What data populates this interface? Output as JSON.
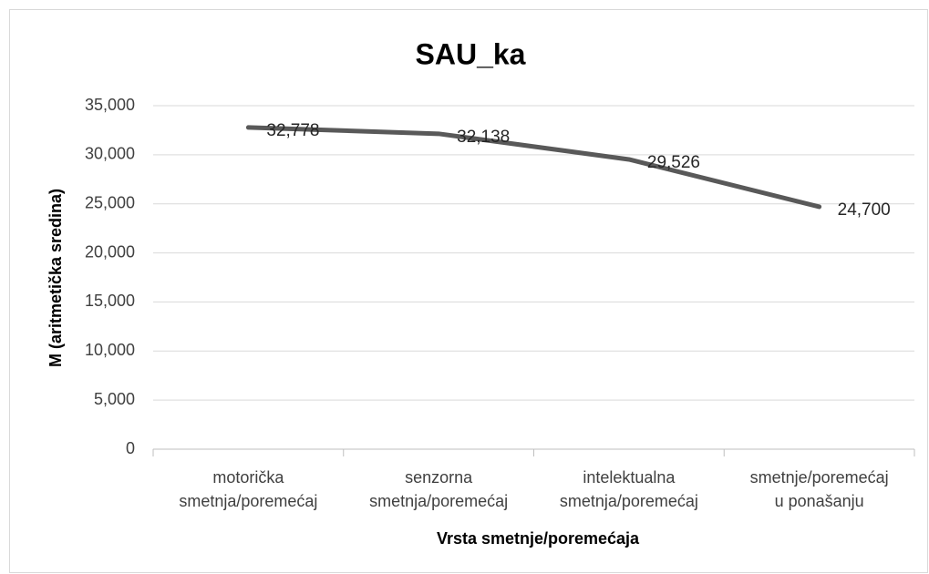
{
  "chart_data": {
    "type": "line",
    "title": "SAU_ka",
    "x_label": "Vrsta smetnje/poremećaja",
    "y_label": "M (aritmetička sredina)",
    "categories": [
      [
        "motorička",
        "smetnja/poremećaj"
      ],
      [
        "senzorna",
        "smetnja/poremećaj"
      ],
      [
        "intelektualna",
        "smetnja/poremećaj"
      ],
      [
        "smetnje/poremećaj",
        "u ponašanju"
      ]
    ],
    "series": [
      {
        "name": "SAU_ka",
        "color": "#595959",
        "values": [
          32.778,
          32.138,
          29.526,
          24.7
        ],
        "value_labels": [
          "32,778",
          "32,138",
          "29,526",
          "24,700"
        ]
      }
    ],
    "ylim": [
      0,
      35
    ],
    "yticks": [
      0,
      {
        "value": 5,
        "label": "5,000"
      },
      {
        "value": 10,
        "label": "10,000"
      },
      {
        "value": 15,
        "label": "15,000"
      },
      {
        "value": 20,
        "label": "20,000"
      },
      {
        "value": 25,
        "label": "25,000"
      },
      {
        "value": 30,
        "label": "30,000"
      },
      {
        "value": 35,
        "label": "35,000"
      }
    ],
    "grid": true
  }
}
